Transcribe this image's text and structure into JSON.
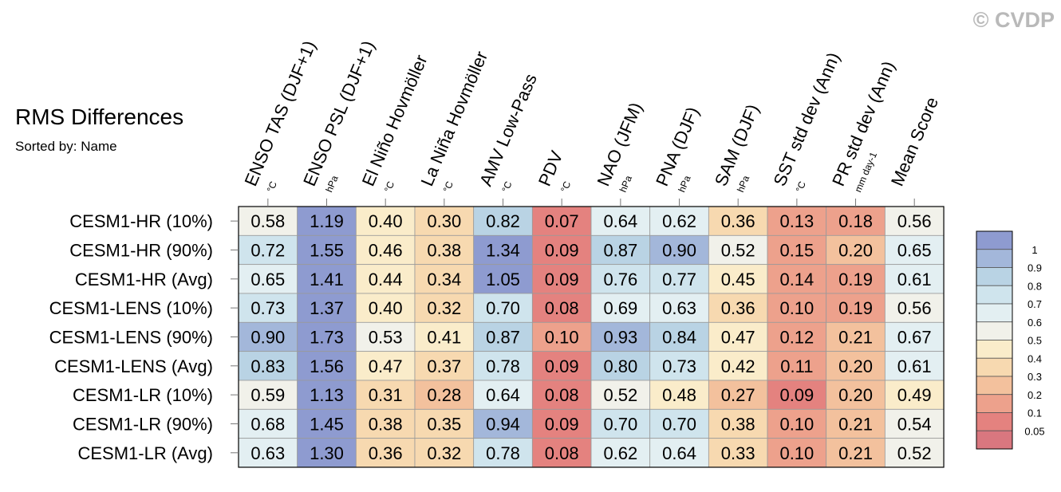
{
  "watermark": "© CVDP",
  "chart_data": {
    "type": "heatmap",
    "title": "RMS Differences",
    "subtitle": "Sorted by: Name",
    "columns": [
      {
        "label": "ENSO TAS (DJF+1)",
        "unit": "°C"
      },
      {
        "label": "ENSO PSL (DJF+1)",
        "unit": "hPa"
      },
      {
        "label": "El Niño Hovmöller",
        "unit": "°C"
      },
      {
        "label": "La Niña Hovmöller",
        "unit": "°C"
      },
      {
        "label": "AMV Low-Pass",
        "unit": "°C"
      },
      {
        "label": "PDV",
        "unit": "°C"
      },
      {
        "label": "NAO (JFM)",
        "unit": "hPa"
      },
      {
        "label": "PNA (DJF)",
        "unit": "hPa"
      },
      {
        "label": "SAM (DJF)",
        "unit": "hPa"
      },
      {
        "label": "SST std dev (Ann)",
        "unit": "°C"
      },
      {
        "label": "PR std dev (Ann)",
        "unit": "mm day-1"
      },
      {
        "label": "Mean Score",
        "unit": ""
      }
    ],
    "rows": [
      "CESM1-HR (10%)",
      "CESM1-HR (90%)",
      "CESM1-HR (Avg)",
      "CESM1-LENS (10%)",
      "CESM1-LENS (90%)",
      "CESM1-LENS (Avg)",
      "CESM1-LR (10%)",
      "CESM1-LR (90%)",
      "CESM1-LR (Avg)"
    ],
    "values": [
      [
        "0.58",
        "1.19",
        "0.40",
        "0.30",
        "0.82",
        "0.07",
        "0.64",
        "0.62",
        "0.36",
        "0.13",
        "0.18",
        "0.56"
      ],
      [
        "0.72",
        "1.55",
        "0.46",
        "0.38",
        "1.34",
        "0.09",
        "0.87",
        "0.90",
        "0.52",
        "0.15",
        "0.20",
        "0.65"
      ],
      [
        "0.65",
        "1.41",
        "0.44",
        "0.34",
        "1.05",
        "0.09",
        "0.76",
        "0.77",
        "0.45",
        "0.14",
        "0.19",
        "0.61"
      ],
      [
        "0.73",
        "1.37",
        "0.40",
        "0.32",
        "0.70",
        "0.08",
        "0.69",
        "0.63",
        "0.36",
        "0.10",
        "0.19",
        "0.56"
      ],
      [
        "0.90",
        "1.73",
        "0.53",
        "0.41",
        "0.87",
        "0.10",
        "0.93",
        "0.84",
        "0.47",
        "0.12",
        "0.21",
        "0.67"
      ],
      [
        "0.83",
        "1.56",
        "0.47",
        "0.37",
        "0.78",
        "0.09",
        "0.80",
        "0.73",
        "0.42",
        "0.11",
        "0.20",
        "0.61"
      ],
      [
        "0.59",
        "1.13",
        "0.31",
        "0.28",
        "0.64",
        "0.08",
        "0.52",
        "0.48",
        "0.27",
        "0.09",
        "0.20",
        "0.49"
      ],
      [
        "0.68",
        "1.45",
        "0.38",
        "0.35",
        "0.94",
        "0.09",
        "0.70",
        "0.70",
        "0.38",
        "0.10",
        "0.21",
        "0.54"
      ],
      [
        "0.63",
        "1.30",
        "0.36",
        "0.32",
        "0.78",
        "0.08",
        "0.62",
        "0.64",
        "0.33",
        "0.10",
        "0.21",
        "0.52"
      ]
    ],
    "legend": {
      "ticks": [
        "1",
        "0.9",
        "0.8",
        "0.7",
        "0.6",
        "0.5",
        "0.4",
        "0.3",
        "0.2",
        "0.1",
        "0.05"
      ],
      "colors": [
        "#8e9bd0",
        "#a3b7da",
        "#b9d3e4",
        "#cfe4ed",
        "#e3eff2",
        "#f1f1ea",
        "#faecca",
        "#f7d9b0",
        "#f3c19d",
        "#eda18c",
        "#e4827f",
        "#d9777f"
      ]
    }
  }
}
